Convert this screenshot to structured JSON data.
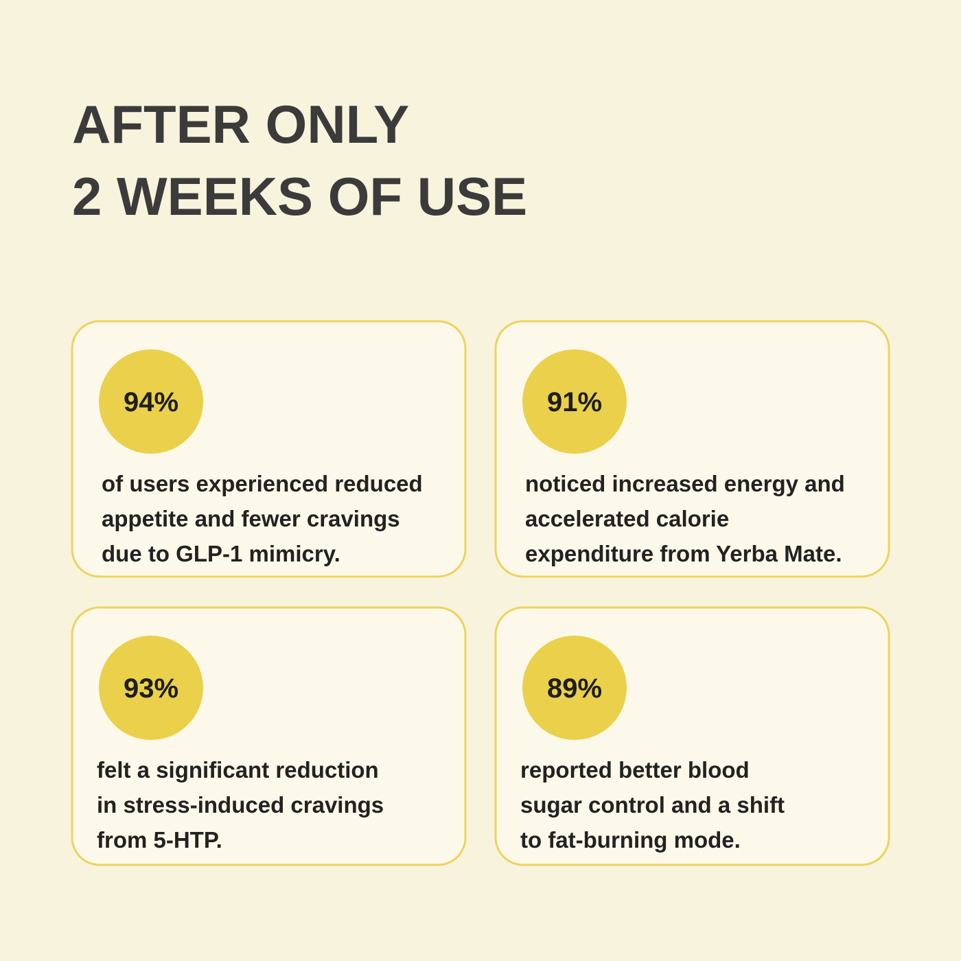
{
  "header": {
    "title": [
      "AFTER ONLY",
      "2 WEEKS OF USE"
    ]
  },
  "cards": [
    {
      "stat": "94%",
      "lines": [
        "of users experienced reduced",
        "appetite and fewer cravings",
        "due to GLP-1 mimicry."
      ]
    },
    {
      "stat": "91%",
      "lines": [
        "noticed increased energy and",
        "accelerated calorie",
        "expenditure from Yerba Mate."
      ]
    },
    {
      "stat": "93%",
      "lines": [
        "felt a significant reduction",
        "in stress-induced cravings",
        "from 5-HTP."
      ]
    },
    {
      "stat": "89%",
      "lines": [
        "reported better blood",
        "sugar control and a shift",
        "to fat-burning mode."
      ]
    }
  ]
}
